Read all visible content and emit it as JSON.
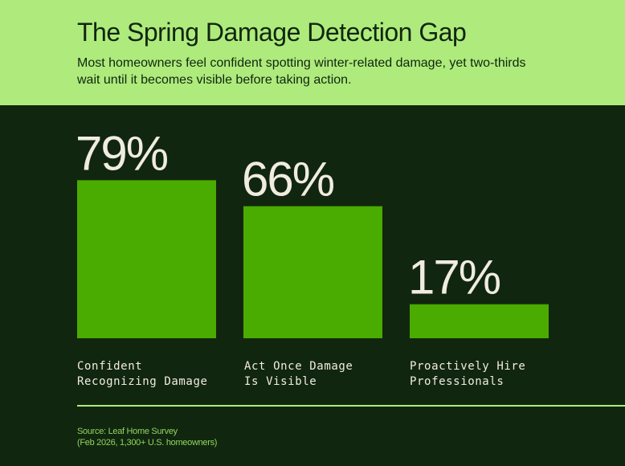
{
  "header": {
    "title": "The Spring Damage Detection Gap",
    "subtitle": "Most homeowners feel confident spotting winter-related damage, yet two-thirds wait until it becomes visible before taking action."
  },
  "chart_data": {
    "type": "bar",
    "categories": [
      "Confident\nRecognizing Damage",
      "Act Once Damage\nIs Visible",
      "Proactively Hire\nProfessionals"
    ],
    "values": [
      79,
      66,
      17
    ],
    "data_labels": [
      "79%",
      "66%",
      "17%"
    ],
    "ylim": [
      0,
      100
    ],
    "grid": false,
    "colors": {
      "bar": "#4aab00",
      "label": "#f0ece0",
      "background": "#11260f",
      "header": "#aeeb7c"
    }
  },
  "footer": {
    "source_line1": "Source: Leaf Home Survey",
    "source_line2": "(Feb 2026, 1,300+ U.S. homeowners)"
  }
}
